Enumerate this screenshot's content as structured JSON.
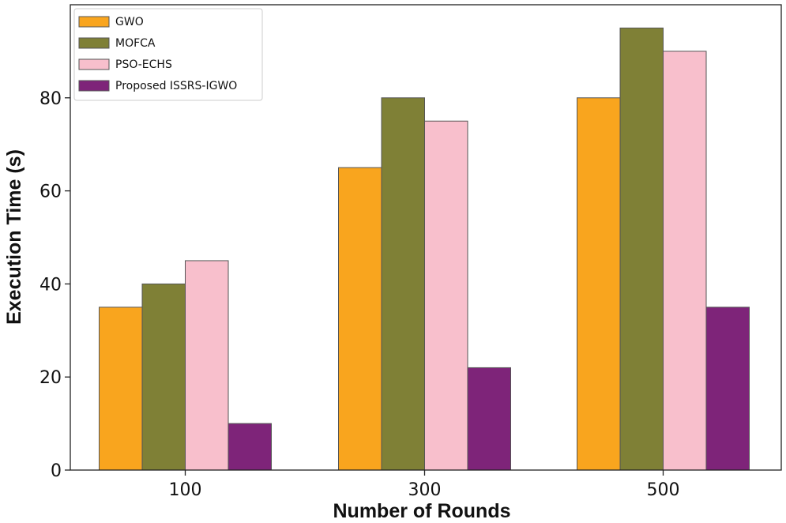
{
  "chart_data": {
    "type": "bar",
    "title": "",
    "xlabel": "Number of Rounds",
    "ylabel": "Execution Time (s)",
    "categories": [
      "100",
      "300",
      "500"
    ],
    "ylim": [
      0,
      100
    ],
    "yticks": [
      "0",
      "20",
      "40",
      "60",
      "80"
    ],
    "grid": false,
    "legend_position": "top-left",
    "series": [
      {
        "name": "GWO",
        "color": "#F9A51E",
        "values": [
          35,
          65,
          80
        ]
      },
      {
        "name": "MOFCA",
        "color": "#7F8036",
        "values": [
          40,
          80,
          95
        ]
      },
      {
        "name": "PSO-ECHS",
        "color": "#F8BFCC",
        "values": [
          45,
          75,
          90
        ]
      },
      {
        "name": "Proposed ISSRS-IGWO",
        "color": "#7E2479",
        "values": [
          10,
          22,
          35
        ]
      }
    ]
  }
}
